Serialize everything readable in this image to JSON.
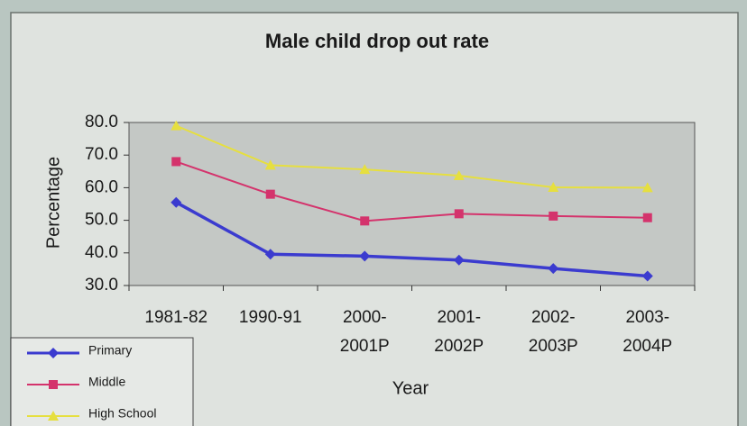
{
  "chart_data": {
    "type": "line",
    "title": "Male  child drop out rate",
    "x_label": "Year",
    "y_label": "Percentage",
    "categories": [
      "1981-82",
      "1990-91",
      "2000-2001P",
      "2001-2002P",
      "2002-2003P",
      "2003-2004P"
    ],
    "series": [
      {
        "name": "Primary",
        "color": "#3b3bcf",
        "marker": "diamond",
        "values": [
          55.5,
          39.6,
          39.0,
          37.8,
          35.2,
          32.9
        ]
      },
      {
        "name": "Middle",
        "color": "#d4336c",
        "marker": "square",
        "values": [
          68.0,
          58.0,
          49.8,
          52.0,
          51.3,
          50.8
        ]
      },
      {
        "name": "High School",
        "color": "#e6df3f",
        "marker": "triangle",
        "values": [
          79.0,
          66.9,
          65.6,
          63.7,
          60.1,
          60.0
        ]
      }
    ],
    "ylim": [
      30,
      80
    ],
    "yticks": [
      {
        "value": 30,
        "label": "30.0"
      },
      {
        "value": 40,
        "label": "40.0"
      },
      {
        "value": 50,
        "label": "50.0"
      },
      {
        "value": 60,
        "label": "60.0"
      },
      {
        "value": 70,
        "label": "70.0"
      },
      {
        "value": 80,
        "label": "80.0"
      }
    ],
    "grid": false,
    "legend": "bottom-left"
  }
}
